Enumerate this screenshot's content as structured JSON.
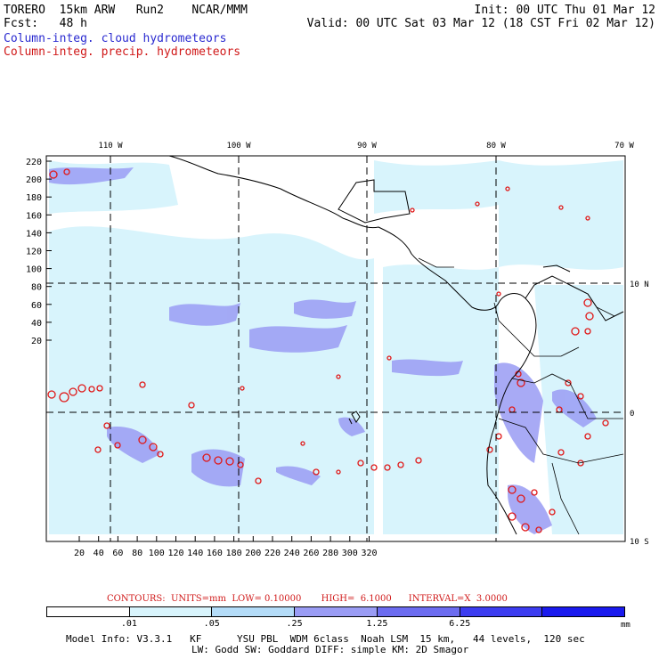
{
  "header": {
    "left_line1": "TORERO  15km ARW   Run2    NCAR/MMM",
    "left_line2": "Fcst:   48 h",
    "right_line1": "Init: 00 UTC Thu 01 Mar 12",
    "right_line2": "Valid: 00 UTC Sat 03 Mar 12 (18 CST Fri 02 Mar 12)",
    "legend_cloud": "Column-integ. cloud hydrometeors",
    "legend_precip": "Column-integ. precip. hydrometeors"
  },
  "colors": {
    "cloud_legend": "#2a2ad0",
    "precip_legend": "#d01818",
    "shade_low": "#d8f4fc",
    "shade_mid": "#9a9cf4",
    "precip_contour": "#e01818"
  },
  "map": {
    "top_lon_labels": [
      "110 W",
      "100 W",
      "90 W",
      "80 W",
      "70 W"
    ],
    "right_lat_labels": [
      "10 N",
      "0",
      "10 S"
    ],
    "y_ticks": [
      "220",
      "200",
      "180",
      "160",
      "140",
      "120",
      "100",
      "80",
      "60",
      "40",
      "20"
    ],
    "x_ticks": [
      "20",
      "40",
      "60",
      "80",
      "100",
      "120",
      "140",
      "160",
      "180",
      "200",
      "220",
      "240",
      "260",
      "280",
      "300",
      "320"
    ]
  },
  "contours": {
    "text": "CONTOURS:  UNITS=mm  LOW= 0.10000       HIGH=  6.1000      INTERVAL=X  3.0000"
  },
  "colorbar": {
    "labels": [
      ".01",
      ".05",
      ".25",
      "1.25",
      "6.25"
    ],
    "unit": "mm",
    "colors": [
      "#ffffff",
      "#d8f4fc",
      "#b4dcf8",
      "#9a9cf4",
      "#6c6cf0",
      "#3c3cf0",
      "#1a1aee"
    ]
  },
  "footer": {
    "line1": "Model Info: V3.3.1   KF      YSU PBL  WDM 6class  Noah LSM  15 km,   44 levels,  120 sec",
    "line2": "LW: Godd SW: Goddard DIFF: simple KM: 2D Smagor"
  }
}
